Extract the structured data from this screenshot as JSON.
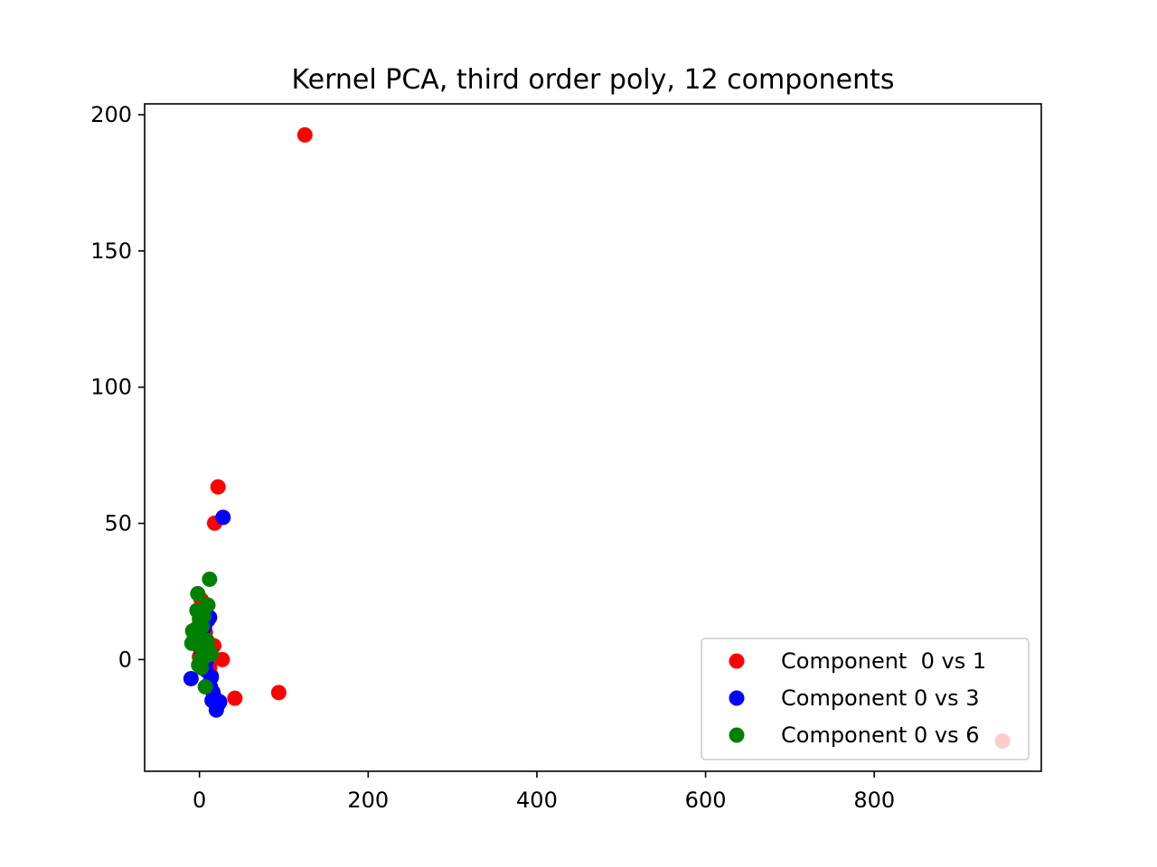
{
  "chart_data": {
    "type": "scatter",
    "title": "Kernel PCA, third order poly, 12 components",
    "xlabel": "",
    "ylabel": "",
    "xlim": [
      -65,
      998
    ],
    "ylim": [
      -41,
      204
    ],
    "x_ticks": [
      {
        "value": 0,
        "label": "0"
      },
      {
        "value": 200,
        "label": "200"
      },
      {
        "value": 400,
        "label": "400"
      },
      {
        "value": 600,
        "label": "600"
      },
      {
        "value": 800,
        "label": "800"
      }
    ],
    "y_ticks": [
      {
        "value": 0,
        "label": "0"
      },
      {
        "value": 50,
        "label": "50"
      },
      {
        "value": 100,
        "label": "100"
      },
      {
        "value": 150,
        "label": "150"
      },
      {
        "value": 200,
        "label": "200"
      }
    ],
    "grid": false,
    "legend_position": "lower-right",
    "series": [
      {
        "name": "Component  0 vs 1",
        "color": "#ff0000",
        "x": [
          125,
          22,
          18,
          27,
          17,
          42,
          94,
          952,
          2,
          6,
          10,
          -1,
          4,
          8,
          3,
          5,
          12,
          0,
          7,
          9,
          14,
          1
        ],
        "y": [
          192.6,
          63.4,
          50.1,
          0.0,
          5.1,
          -14.2,
          -12.1,
          -29.9,
          22.0,
          20.5,
          15.0,
          12.0,
          8.0,
          6.0,
          3.0,
          -1.0,
          -3.0,
          1.0,
          10.0,
          2.0,
          -6.0,
          4.0
        ]
      },
      {
        "name": "Component 0 vs 3",
        "color": "#0000ff",
        "x": [
          28,
          -10,
          12,
          10,
          11,
          15,
          20,
          22,
          18,
          14,
          8,
          5,
          3,
          1,
          -2,
          0,
          6,
          9,
          13,
          16,
          24,
          4
        ],
        "y": [
          52.2,
          -7.0,
          15.5,
          14.5,
          -9.0,
          -15.0,
          -18.5,
          -16.5,
          -14.0,
          -6.5,
          -4.0,
          -2.0,
          2.0,
          5.0,
          8.0,
          10.0,
          12.0,
          0.0,
          -10.0,
          -12.0,
          -15.5,
          6.0
        ]
      },
      {
        "name": "Component 0 vs 6",
        "color": "#008000",
        "x": [
          12,
          -2,
          10,
          -3,
          5,
          0,
          3,
          -8,
          -6,
          -9,
          2,
          4,
          8,
          14,
          6,
          1,
          -1,
          7,
          -4,
          9,
          11,
          -5,
          0,
          2
        ],
        "y": [
          29.5,
          24.2,
          20.0,
          18.0,
          16.0,
          13.0,
          12.0,
          10.5,
          8.0,
          6.0,
          5.0,
          3.0,
          4.0,
          2.0,
          1.0,
          0.0,
          -2.0,
          -10.0,
          9.0,
          7.0,
          3.5,
          11.0,
          15.0,
          -3.0
        ]
      }
    ]
  }
}
